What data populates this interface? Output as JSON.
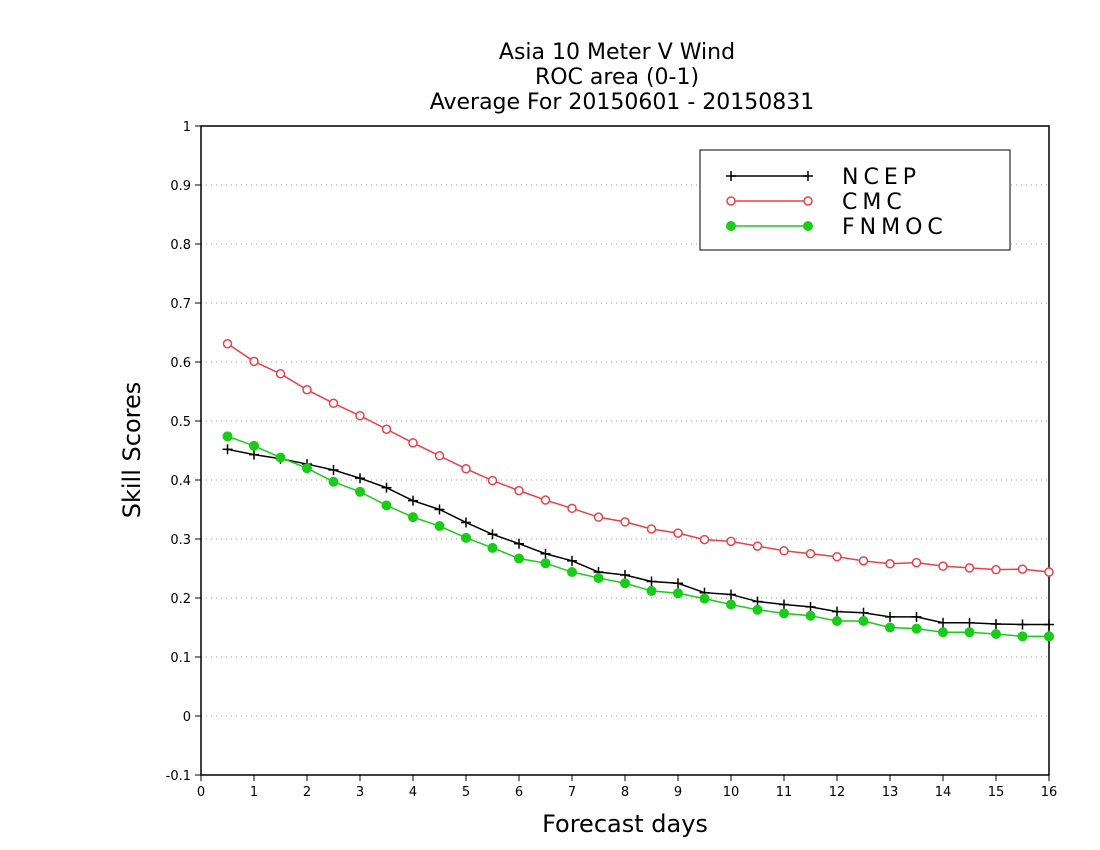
{
  "chart_data": {
    "type": "line",
    "title_lines": [
      "Asia 10 Meter V Wind",
      "ROC area (0-1)",
      "Average For 20150601 - 20150831"
    ],
    "xlabel": "Forecast days",
    "ylabel": "Skill Scores",
    "xlim": [
      0,
      16
    ],
    "ylim": [
      -0.1,
      1
    ],
    "x_ticks": [
      "0",
      "1",
      "2",
      "3",
      "4",
      "5",
      "6",
      "7",
      "8",
      "9",
      "10",
      "11",
      "12",
      "13",
      "14",
      "15",
      "16"
    ],
    "y_ticks": [
      "-0.1",
      "0",
      "0.1",
      "0.2",
      "0.3",
      "0.4",
      "0.5",
      "0.6",
      "0.7",
      "0.8",
      "0.9",
      "1"
    ],
    "grid": "horizontal dotted",
    "legend_position": "top-right",
    "x": [
      0.5,
      1,
      1.5,
      2,
      2.5,
      3,
      3.5,
      4,
      4.5,
      5,
      5.5,
      6,
      6.5,
      7,
      7.5,
      8,
      8.5,
      9,
      9.5,
      10,
      10.5,
      11,
      11.5,
      12,
      12.5,
      13,
      13.5,
      14,
      14.5,
      15,
      15.5,
      16
    ],
    "series": [
      {
        "name": "NCEP",
        "color": "#000000",
        "marker": "plus",
        "values": [
          0.452,
          0.443,
          0.436,
          0.427,
          0.417,
          0.403,
          0.387,
          0.365,
          0.35,
          0.328,
          0.308,
          0.292,
          0.275,
          0.263,
          0.244,
          0.239,
          0.228,
          0.225,
          0.209,
          0.206,
          0.194,
          0.189,
          0.185,
          0.177,
          0.175,
          0.168,
          0.168,
          0.158,
          0.158,
          0.156,
          0.155,
          0.155
        ]
      },
      {
        "name": "CMC",
        "color": "#e8414a",
        "marker": "open-circle",
        "values": [
          0.631,
          0.601,
          0.58,
          0.553,
          0.53,
          0.509,
          0.486,
          0.463,
          0.441,
          0.419,
          0.399,
          0.382,
          0.366,
          0.352,
          0.337,
          0.329,
          0.317,
          0.31,
          0.299,
          0.296,
          0.288,
          0.28,
          0.275,
          0.27,
          0.263,
          0.258,
          0.26,
          0.254,
          0.251,
          0.248,
          0.249,
          0.244
        ]
      },
      {
        "name": "FNMOC",
        "color": "#18cc18",
        "marker": "filled-circle",
        "values": [
          0.474,
          0.458,
          0.438,
          0.42,
          0.397,
          0.38,
          0.357,
          0.337,
          0.322,
          0.302,
          0.285,
          0.267,
          0.259,
          0.244,
          0.234,
          0.225,
          0.212,
          0.208,
          0.199,
          0.189,
          0.18,
          0.174,
          0.17,
          0.161,
          0.161,
          0.15,
          0.148,
          0.142,
          0.142,
          0.139,
          0.135,
          0.135
        ]
      }
    ]
  }
}
